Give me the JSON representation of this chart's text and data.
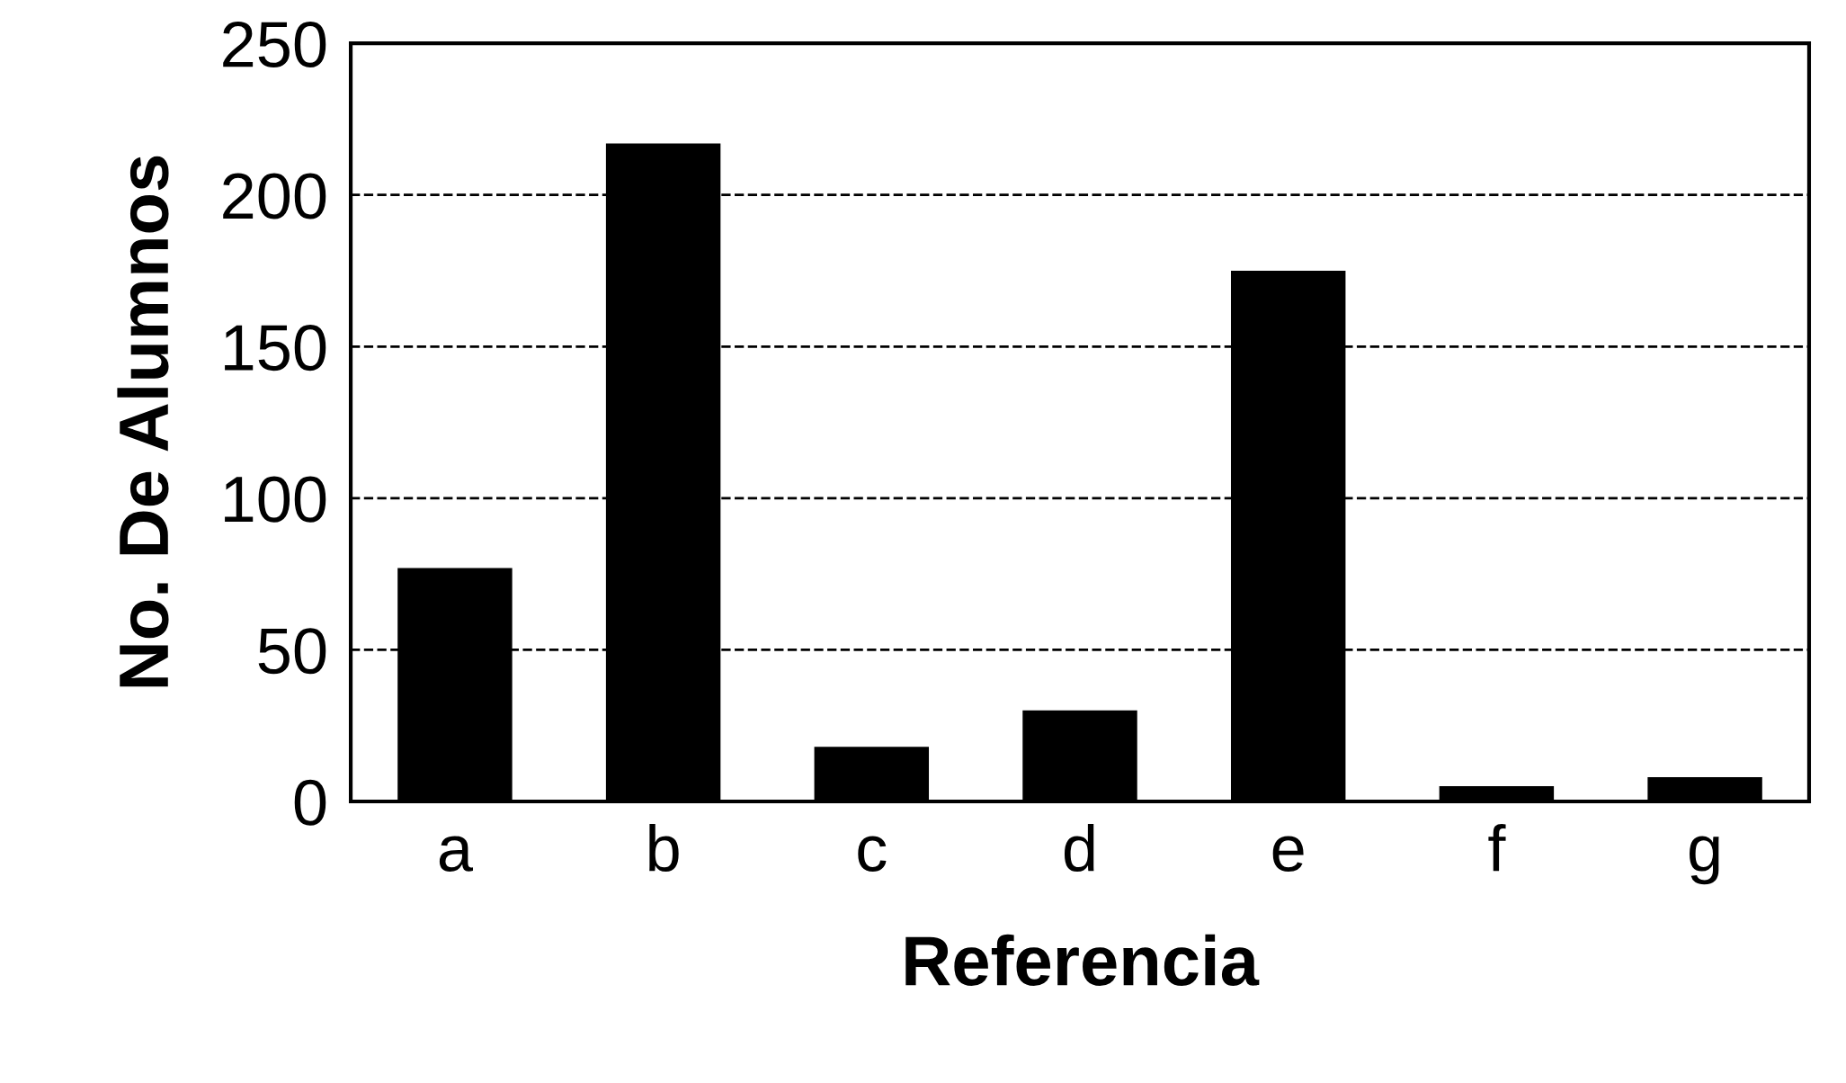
{
  "chart_data": {
    "type": "bar",
    "xlabel": "Referencia",
    "ylabel": "No. De Alumnos",
    "categories": [
      "a",
      "b",
      "c",
      "d",
      "e",
      "f",
      "g"
    ],
    "values": [
      77,
      217,
      18,
      30,
      175,
      5,
      8
    ],
    "color": "#000000",
    "ylim": [
      0,
      250
    ],
    "yticks": [
      0,
      50,
      100,
      150,
      200,
      250
    ],
    "grid": "y"
  }
}
